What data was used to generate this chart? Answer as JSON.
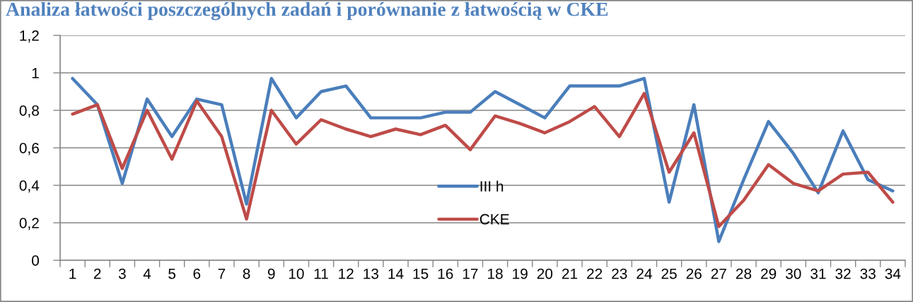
{
  "chart_data": {
    "type": "line",
    "title": "Analiza łatwości poszczególnych zadań i porównanie z łatwością w CKE",
    "categories": [
      "1",
      "2",
      "3",
      "4",
      "5",
      "6",
      "7",
      "8",
      "9",
      "10",
      "11",
      "12",
      "13",
      "14",
      "15",
      "16",
      "17",
      "18",
      "19",
      "20",
      "21",
      "22",
      "23",
      "24",
      "25",
      "26",
      "27",
      "28",
      "29",
      "30",
      "31",
      "32",
      "33",
      "34"
    ],
    "series": [
      {
        "name": "III h",
        "color": "#4a7ebb",
        "values": [
          0.97,
          0.83,
          0.41,
          0.86,
          0.66,
          0.86,
          0.83,
          0.3,
          0.97,
          0.76,
          0.9,
          0.93,
          0.76,
          0.76,
          0.76,
          0.79,
          0.79,
          0.9,
          0.83,
          0.76,
          0.93,
          0.93,
          0.93,
          0.97,
          0.31,
          0.83,
          0.1,
          0.43,
          0.74,
          0.57,
          0.36,
          0.69,
          0.43,
          0.37
        ]
      },
      {
        "name": "CKE",
        "color": "#be4b48",
        "values": [
          0.78,
          0.83,
          0.49,
          0.8,
          0.54,
          0.85,
          0.66,
          0.22,
          0.8,
          0.62,
          0.75,
          0.7,
          0.66,
          0.7,
          0.67,
          0.72,
          0.59,
          0.77,
          0.73,
          0.68,
          0.74,
          0.82,
          0.66,
          0.89,
          0.47,
          0.68,
          0.18,
          0.32,
          0.51,
          0.41,
          0.37,
          0.46,
          0.47,
          0.31
        ]
      }
    ],
    "ylim": [
      0,
      1.2
    ],
    "yticks": [
      0,
      {
        "value": 0.2,
        "label": "0,2"
      },
      {
        "value": 0.4,
        "label": "0,4"
      },
      {
        "value": 0.6,
        "label": "0,6"
      },
      {
        "value": 0.8,
        "label": "0,8"
      },
      1,
      {
        "value": 1.2,
        "label": "1,2"
      }
    ],
    "grid": "y",
    "legend": "bottom",
    "line_style": "solid"
  }
}
